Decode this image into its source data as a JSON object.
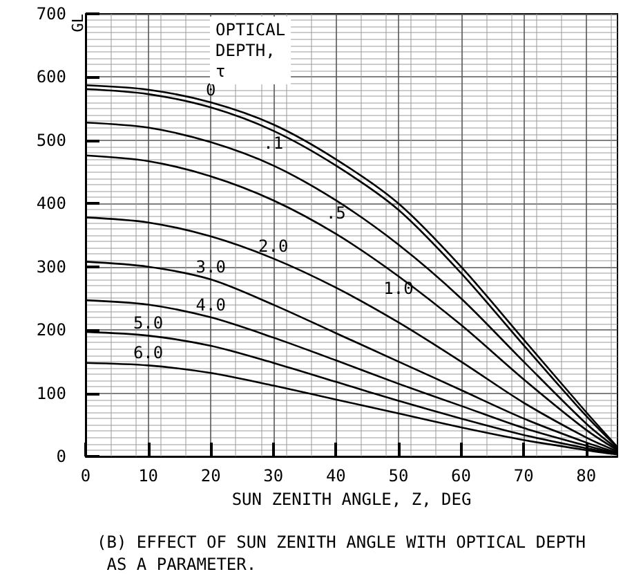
{
  "chart_data": {
    "type": "line",
    "ylabel": "GL",
    "xlabel": "SUN ZENITH ANGLE, Z, DEG",
    "legend_title": "OPTICAL DEPTH, τ",
    "x": [
      0,
      10,
      20,
      30,
      40,
      50,
      60,
      70,
      80,
      85
    ],
    "series": [
      {
        "name": "0",
        "color": "#000000",
        "values": [
          587,
          580,
          560,
          525,
          470,
          400,
          300,
          185,
          70,
          15
        ]
      },
      {
        "name": ".1",
        "color": "#000000",
        "values": [
          581,
          573,
          552,
          515,
          460,
          390,
          290,
          176,
          64,
          14
        ]
      },
      {
        "name": ".5",
        "color": "#000000",
        "values": [
          528,
          520,
          497,
          460,
          405,
          335,
          250,
          150,
          52,
          12
        ]
      },
      {
        "name": "1.0",
        "color": "#000000",
        "values": [
          476,
          467,
          443,
          405,
          352,
          285,
          208,
          122,
          42,
          10
        ]
      },
      {
        "name": "2.0",
        "color": "#000000",
        "values": [
          378,
          370,
          348,
          313,
          267,
          212,
          150,
          85,
          30,
          8
        ]
      },
      {
        "name": "3.0",
        "color": "#000000",
        "values": [
          308,
          300,
          280,
          240,
          195,
          150,
          105,
          60,
          22,
          6
        ]
      },
      {
        "name": "4.0",
        "color": "#000000",
        "values": [
          247,
          240,
          220,
          188,
          152,
          115,
          80,
          45,
          17,
          5
        ]
      },
      {
        "name": "5.0",
        "color": "#000000",
        "values": [
          197,
          191,
          175,
          148,
          118,
          88,
          60,
          34,
          13,
          4
        ]
      },
      {
        "name": "6.0",
        "color": "#000000",
        "values": [
          148,
          144,
          132,
          112,
          90,
          68,
          46,
          26,
          10,
          3
        ]
      }
    ],
    "xlim": [
      0,
      85
    ],
    "xticks": [
      0,
      10,
      20,
      30,
      40,
      50,
      60,
      70,
      80
    ],
    "ylim": [
      0,
      700
    ],
    "yticks": [
      0,
      100,
      200,
      300,
      400,
      500,
      600,
      700
    ],
    "grid": true,
    "legend": false,
    "marker": "none",
    "line_style": "solid",
    "annotations": [
      "(B) EFFECT OF SUN ZENITH ANGLE WITH OPTICAL DEPTH AS A PARAMETER."
    ]
  }
}
